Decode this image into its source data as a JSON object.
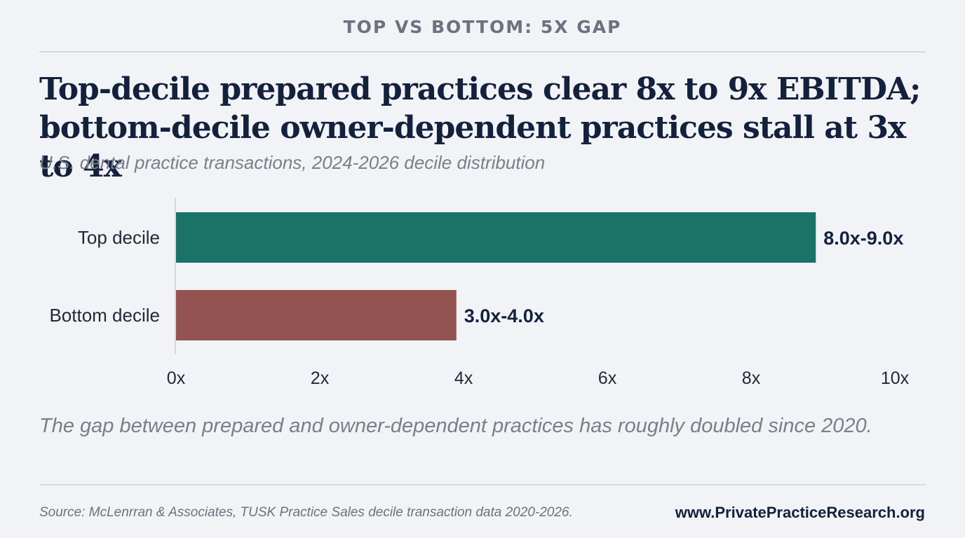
{
  "kicker": "TOP VS BOTTOM: 5X GAP",
  "headline": {
    "line1": "Top-decile prepared practices clear 8x to 9x EBITDA;",
    "line2": "bottom-decile owner-dependent practices stall at 3x to 4x"
  },
  "subtitle": "U.S. dental practice transactions, 2024-2026 decile distribution",
  "note": "The gap between prepared and owner-dependent practices has roughly doubled since 2020.",
  "source": "Source: McLenrran & Associates, TUSK Practice Sales decile transaction data 2020-2026.",
  "url": "www.PrivatePracticeResearch.org",
  "colors": {
    "top": "#1b7268",
    "bottom": "#935350",
    "axis_line": "#d6d9de",
    "text_dark": "#14213d"
  },
  "chart_data": {
    "type": "bar",
    "orientation": "horizontal",
    "title": "",
    "xlabel": "",
    "ylabel": "",
    "xlim": [
      0,
      10
    ],
    "grid": false,
    "ticks": [
      {
        "value": 0,
        "label": "0x"
      },
      {
        "value": 2,
        "label": "2x"
      },
      {
        "value": 4,
        "label": "4x"
      },
      {
        "value": 6,
        "label": "6x"
      },
      {
        "value": 8,
        "label": "8x"
      },
      {
        "value": 10,
        "label": "10x"
      }
    ],
    "categories": [
      "Top decile",
      "Bottom decile"
    ],
    "values": [
      8.9,
      3.9
    ],
    "ranges": [
      [
        8.0,
        9.0
      ],
      [
        3.0,
        4.0
      ]
    ],
    "data_labels": [
      "8.0x-9.0x",
      "3.0x-4.0x"
    ],
    "bar_colors": [
      "#1b7268",
      "#935350"
    ]
  }
}
